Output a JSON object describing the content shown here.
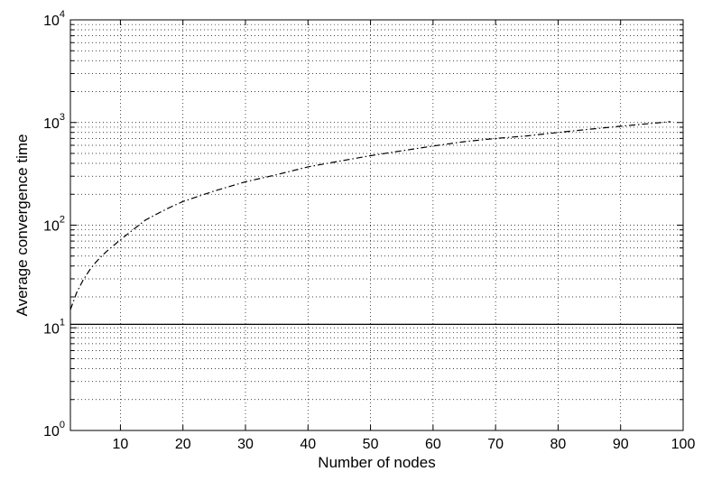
{
  "chart_data": {
    "type": "line",
    "title": "",
    "xlabel": "Number of nodes",
    "ylabel": "Average convergence time",
    "xlim": [
      2,
      100
    ],
    "ylim": [
      1,
      10000
    ],
    "yscale": "log",
    "grid": true,
    "x_ticks": [
      10,
      20,
      30,
      40,
      50,
      60,
      70,
      80,
      90,
      100
    ],
    "y_ticks": [
      {
        "value": 1,
        "base": "10",
        "exp": "0"
      },
      {
        "value": 10,
        "base": "10",
        "exp": "1"
      },
      {
        "value": 100,
        "base": "10",
        "exp": "2"
      },
      {
        "value": 1000,
        "base": "10",
        "exp": "3"
      },
      {
        "value": 10000,
        "base": "10",
        "exp": "4"
      }
    ],
    "series": [
      {
        "style": "dash-dot",
        "color": "#000000",
        "x": [
          2,
          3,
          4,
          5,
          6,
          7,
          8,
          9,
          10,
          12,
          14,
          16,
          18,
          20,
          25,
          30,
          35,
          40,
          45,
          50,
          55,
          60,
          65,
          70,
          75,
          80,
          85,
          90,
          95,
          98
        ],
        "y": [
          15,
          22,
          29,
          36,
          43,
          50,
          57,
          64,
          72,
          90,
          112,
          130,
          150,
          170,
          215,
          265,
          310,
          370,
          420,
          475,
          530,
          590,
          650,
          700,
          740,
          800,
          860,
          920,
          980,
          1020
        ]
      },
      {
        "style": "solid",
        "color": "#000000",
        "x": [
          2,
          100
        ],
        "y": [
          10.8,
          10.8
        ]
      }
    ]
  }
}
